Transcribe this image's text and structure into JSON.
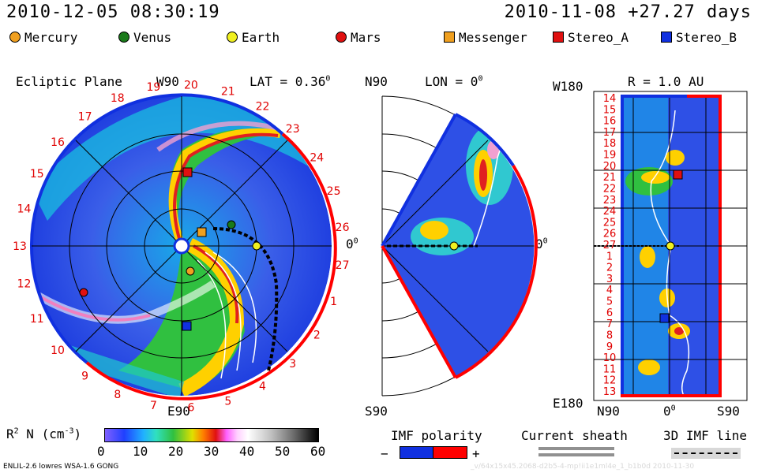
{
  "header": {
    "timestamp": "2010-12-05 08:30:19",
    "reference": "2010-11-08 +27.27 days"
  },
  "legend": [
    {
      "label": "Mercury",
      "shape": "dot",
      "color": "#f0a020"
    },
    {
      "label": "Venus",
      "shape": "dot",
      "color": "#1a7a1a"
    },
    {
      "label": "Earth",
      "shape": "dot",
      "color": "#f0f020"
    },
    {
      "label": "Mars",
      "shape": "dot",
      "color": "#e01010"
    },
    {
      "label": "Messenger",
      "shape": "square",
      "color": "#f0a020"
    },
    {
      "label": "Stereo_A",
      "shape": "square",
      "color": "#e01010"
    },
    {
      "label": "Stereo_B",
      "shape": "square",
      "color": "#1030e0"
    }
  ],
  "ecliptic": {
    "title": "Ecliptic Plane",
    "top_label": "W90",
    "lat_label": "LAT = 0.36",
    "lat_sup": "0",
    "bottom_label": "E90",
    "right_label": "0",
    "right_sup": "0",
    "carrington_ticks": [
      "19",
      "20",
      "21",
      "22",
      "23",
      "24",
      "25",
      "26",
      "27",
      "1",
      "2",
      "3",
      "4",
      "5",
      "6",
      "7",
      "8",
      "9",
      "10",
      "11",
      "12",
      "13",
      "14",
      "15",
      "16",
      "17",
      "18"
    ]
  },
  "meridional": {
    "top_label": "N90",
    "lon_label": "LON = 0",
    "lon_sup": "0",
    "bottom_label": "S90",
    "right_label": "0",
    "right_sup": "0"
  },
  "radial": {
    "top_left_label": "W180",
    "r_label": "R = 1.0 AU",
    "bottom_left_label": "E180",
    "x_labels": [
      "N90",
      "0",
      "S90"
    ],
    "x_sup": "0",
    "y_ticks": [
      "14",
      "15",
      "16",
      "17",
      "18",
      "19",
      "20",
      "21",
      "22",
      "23",
      "24",
      "25",
      "26",
      "27",
      "1",
      "2",
      "3",
      "4",
      "5",
      "6",
      "7",
      "8",
      "9",
      "10",
      "11",
      "12",
      "13"
    ]
  },
  "colorbar": {
    "title": "R",
    "title_sup": "2",
    "title_rest": " N (cm",
    "title_sup2": "-3",
    "title_end": ")",
    "min": 0,
    "max": 60,
    "tick_labels": [
      "0",
      "10",
      "20",
      "30",
      "40",
      "50",
      "60"
    ]
  },
  "imf_polarity": {
    "title": "IMF polarity",
    "minus": "−",
    "plus": "+",
    "colors": [
      "#1030e0",
      "#ff0000"
    ]
  },
  "current_sheath": {
    "title": "Current sheath"
  },
  "imf_line": {
    "title": "3D IMF line"
  },
  "footer": {
    "model": "ENLIL-2.6 lowres WSA-1.6 GONG",
    "run_id": "_v/64x15x45.2068-d2b5-4-mp!ii1e1ml4e_1_b1b0d  2010-11-30"
  },
  "chart_data": {
    "type": "heatmap",
    "quantity": "R2 N (cm-3)",
    "range": [
      0,
      60
    ],
    "tick_values": [
      0,
      10,
      20,
      30,
      40,
      50,
      60
    ],
    "bodies": [
      "Mercury",
      "Venus",
      "Earth",
      "Mars",
      "Messenger",
      "Stereo_A",
      "Stereo_B"
    ]
  }
}
